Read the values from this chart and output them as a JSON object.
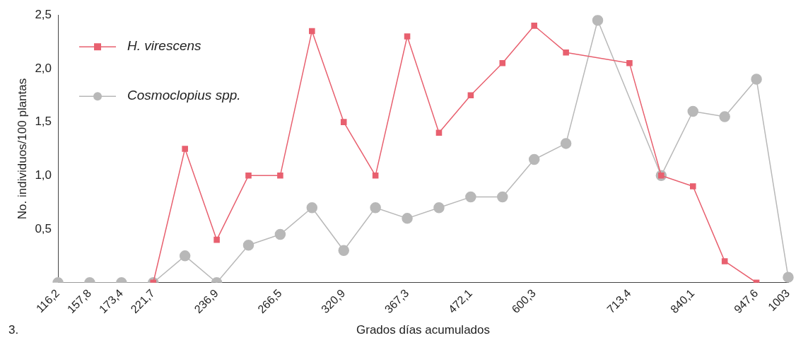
{
  "chart_data": {
    "type": "line",
    "xlabel": "Grados días acumulados",
    "ylabel": "No. individuos/100 plantas",
    "categories": [
      "116,2",
      "157,8",
      "173,4",
      "221,7",
      null,
      "236,9",
      null,
      "266,5",
      null,
      "320,9",
      null,
      "367,3",
      null,
      "472,1",
      null,
      "600,3",
      null,
      null,
      "713,4",
      null,
      "840,1",
      null,
      "947,6",
      "1003"
    ],
    "series": [
      {
        "name": "H. virescens",
        "color": "#e8606f",
        "marker": "square",
        "values": [
          null,
          null,
          null,
          0,
          1.25,
          0.4,
          1.0,
          1.0,
          2.35,
          1.5,
          1.0,
          2.3,
          1.4,
          1.75,
          2.05,
          2.4,
          2.15,
          null,
          2.05,
          1.0,
          0.9,
          0.2,
          0,
          null
        ]
      },
      {
        "name": "Cosmoclopius spp.",
        "color": "#b8b8b8",
        "marker": "circle",
        "values": [
          0,
          0,
          0,
          0,
          0.25,
          0,
          0.35,
          0.45,
          0.7,
          0.3,
          0.7,
          0.6,
          0.7,
          0.8,
          0.8,
          1.15,
          1.3,
          2.45,
          null,
          1.0,
          1.6,
          1.55,
          1.9,
          0.05
        ]
      }
    ],
    "ylim": [
      0,
      2.5
    ],
    "yticks": [
      {
        "value": 0,
        "label": null
      },
      {
        "value": 0.5,
        "label": "0,5"
      },
      {
        "value": 1,
        "label": "1,0"
      },
      {
        "value": 1.5,
        "label": "1,5"
      },
      {
        "value": 2,
        "label": "2,0"
      },
      {
        "value": 2.5,
        "label": "2,5"
      }
    ],
    "legend": "top left",
    "grid": false,
    "annotations": [
      "3."
    ]
  }
}
